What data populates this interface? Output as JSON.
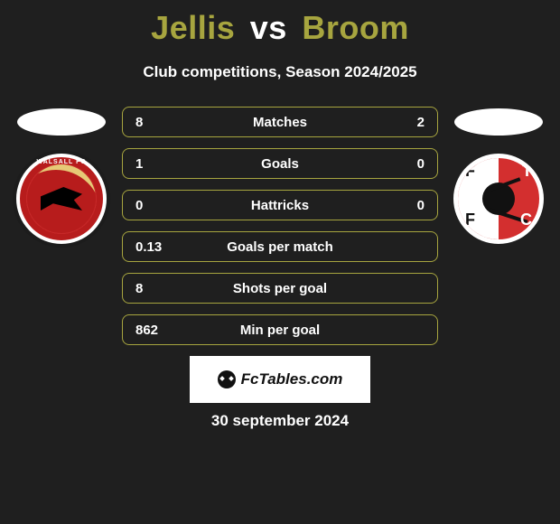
{
  "title": {
    "player1": "Jellis",
    "vs": "vs",
    "player2": "Broom",
    "player1_color": "#a7a53f",
    "vs_color": "#ffffff",
    "player2_color": "#a7a53f"
  },
  "subtitle": "Club competitions, Season 2024/2025",
  "row_border_color": "#a7a53f",
  "row_text_color": "#ffffff",
  "background_color": "#1f1f1f",
  "stats": [
    {
      "label": "Matches",
      "v1": "8",
      "v2": "2"
    },
    {
      "label": "Goals",
      "v1": "1",
      "v2": "0"
    },
    {
      "label": "Hattricks",
      "v1": "0",
      "v2": "0"
    },
    {
      "label": "Goals per match",
      "v1": "0.13",
      "v2": ""
    },
    {
      "label": "Shots per goal",
      "v1": "8",
      "v2": ""
    },
    {
      "label": "Min per goal",
      "v1": "862",
      "v2": ""
    }
  ],
  "crest_left": {
    "name": "walsall-fc-crest",
    "top_text": "WALSALL FC",
    "primary": "#b71c1c",
    "accent": "#e6c976"
  },
  "crest_right": {
    "name": "fleetwood-town-crest",
    "primary": "#d32f2f",
    "letters": [
      "F",
      "F",
      "T",
      "C"
    ]
  },
  "brand": "FcTables.com",
  "date": "30 september 2024"
}
